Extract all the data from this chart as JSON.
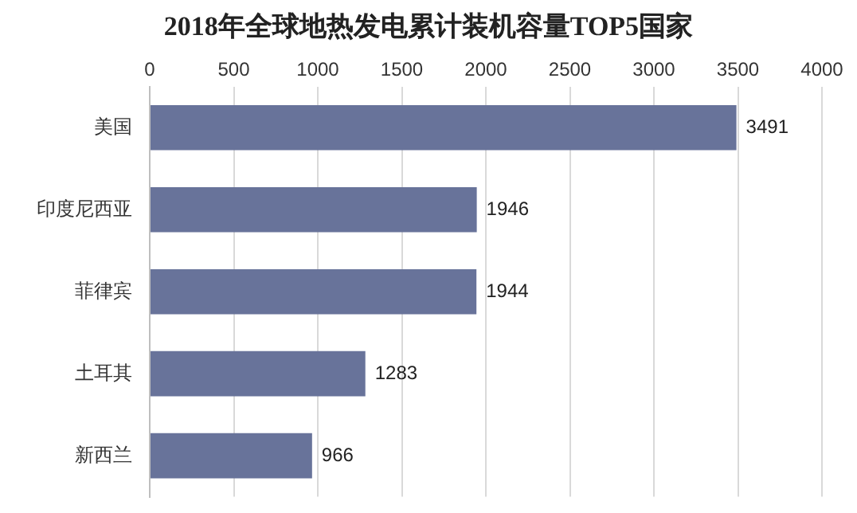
{
  "chart_data": {
    "type": "bar",
    "orientation": "horizontal",
    "title": "2018年全球地热发电累计装机容量TOP5国家",
    "categories": [
      "美国",
      "印度尼西亚",
      "菲律宾",
      "土耳其",
      "新西兰"
    ],
    "values": [
      3491,
      1946,
      1944,
      1283,
      966
    ],
    "color": "#68739a",
    "xlim": [
      0,
      4000
    ],
    "xticks": [
      0,
      500,
      1000,
      1500,
      2000,
      2500,
      3000,
      3500,
      4000
    ],
    "grid": "x",
    "data_labels": true,
    "legend": false
  }
}
